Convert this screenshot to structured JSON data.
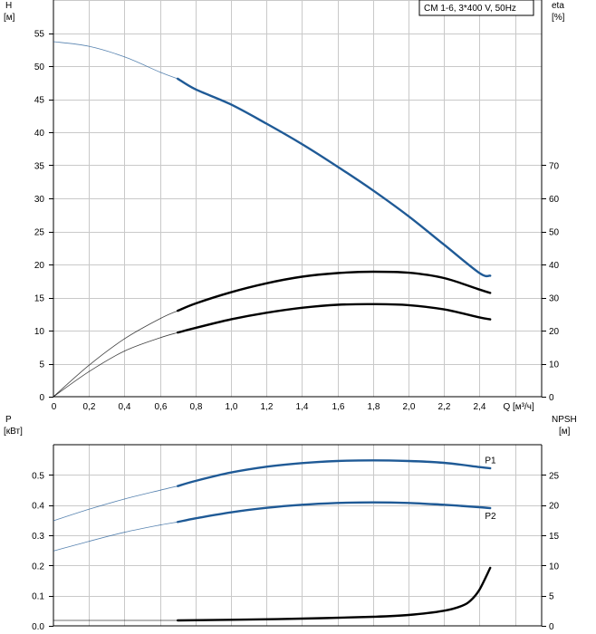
{
  "title": "CM 1-6, 3*400 V, 50Hz",
  "x_axis": {
    "label": "Q [м³/ч]",
    "ticks": [
      "0",
      "0,2",
      "0,4",
      "0,6",
      "0,8",
      "1,0",
      "1,2",
      "1,4",
      "1,6",
      "1,8",
      "2,0",
      "2,2",
      "2,4"
    ]
  },
  "top_panel": {
    "left_axis_title": "H",
    "left_axis_unit": "[м]",
    "right_axis_title": "eta",
    "right_axis_unit": "[%]",
    "left_ticks": [
      "0",
      "5",
      "10",
      "15",
      "20",
      "25",
      "30",
      "35",
      "40",
      "45",
      "50",
      "55"
    ],
    "right_ticks": [
      "0",
      "10",
      "20",
      "30",
      "40",
      "50",
      "60",
      "70"
    ]
  },
  "bottom_panel": {
    "left_axis_title": "P",
    "left_axis_unit": "[кВт]",
    "right_axis_title": "NPSH",
    "right_axis_unit": "[м]",
    "left_ticks": [
      "0.0",
      "0.1",
      "0.2",
      "0.3",
      "0.4",
      "0.5"
    ],
    "right_ticks": [
      "0",
      "5",
      "10",
      "15",
      "20",
      "25"
    ]
  },
  "colors": {
    "blue": "#1f5a96",
    "black": "#000000",
    "thin": "#555555"
  },
  "chart_data": [
    {
      "type": "line",
      "title": "CM 1-6, 3*400 V, 50Hz",
      "xlabel": "Q [м³/ч]",
      "ylabel": "H [м]",
      "y2label": "eta [%]",
      "xlim": [
        0,
        2.75
      ],
      "ylim": [
        0,
        60
      ],
      "y2lim": [
        0,
        120
      ],
      "grid": true,
      "series": [
        {
          "name": "H",
          "axis": "left",
          "color": "#1f5a96",
          "x": [
            0,
            0.2,
            0.4,
            0.6,
            0.7,
            0.8,
            1.0,
            1.2,
            1.4,
            1.6,
            1.8,
            2.0,
            2.2,
            2.4,
            2.46
          ],
          "y": [
            53.7,
            53.0,
            51.4,
            49.1,
            48.1,
            46.5,
            44.2,
            41.3,
            38.2,
            34.8,
            31.2,
            27.3,
            23.0,
            18.7,
            18.3
          ],
          "duty_from": 0.7
        },
        {
          "name": "",
          "axis": "right",
          "color": "#000000",
          "x": [
            0,
            0.2,
            0.4,
            0.6,
            0.7,
            0.8,
            1.0,
            1.2,
            1.4,
            1.6,
            1.8,
            2.0,
            2.2,
            2.4,
            2.46
          ],
          "y": [
            0,
            9.5,
            17.5,
            23.6,
            26.0,
            28.2,
            31.6,
            34.3,
            36.3,
            37.4,
            37.8,
            37.5,
            35.9,
            32.4,
            31.4
          ],
          "duty_from": 0.7
        },
        {
          "name": "",
          "axis": "right",
          "color": "#000000",
          "x": [
            0,
            0.2,
            0.4,
            0.6,
            0.7,
            0.8,
            1.0,
            1.2,
            1.4,
            1.6,
            1.8,
            2.0,
            2.2,
            2.4,
            2.46
          ],
          "y": [
            0,
            7.6,
            13.8,
            17.8,
            19.4,
            20.8,
            23.4,
            25.4,
            26.9,
            27.8,
            28.0,
            27.7,
            26.4,
            24.0,
            23.4
          ],
          "duty_from": 0.7
        }
      ]
    },
    {
      "type": "line",
      "xlabel": "Q [м³/ч]",
      "ylabel": "P [кВт]",
      "y2label": "NPSH [м]",
      "xlim": [
        0,
        2.75
      ],
      "ylim": [
        0,
        0.6
      ],
      "y2lim": [
        0,
        30
      ],
      "grid": true,
      "series": [
        {
          "name": "P1",
          "axis": "left",
          "color": "#1f5a96",
          "x": [
            0,
            0.2,
            0.4,
            0.6,
            0.7,
            0.8,
            1.0,
            1.2,
            1.4,
            1.6,
            1.8,
            2.0,
            2.2,
            2.4,
            2.46
          ],
          "y": [
            0.348,
            0.386,
            0.42,
            0.449,
            0.463,
            0.48,
            0.508,
            0.527,
            0.539,
            0.546,
            0.548,
            0.546,
            0.54,
            0.526,
            0.522
          ],
          "duty_from": 0.7
        },
        {
          "name": "P2",
          "axis": "left",
          "color": "#1f5a96",
          "x": [
            0,
            0.2,
            0.4,
            0.6,
            0.7,
            0.8,
            1.0,
            1.2,
            1.4,
            1.6,
            1.8,
            2.0,
            2.2,
            2.4,
            2.46
          ],
          "y": [
            0.248,
            0.28,
            0.31,
            0.334,
            0.344,
            0.356,
            0.376,
            0.391,
            0.401,
            0.407,
            0.409,
            0.407,
            0.401,
            0.393,
            0.39
          ],
          "duty_from": 0.7
        },
        {
          "name": "",
          "axis": "right",
          "color": "#000000",
          "x": [
            0,
            0.7,
            1.0,
            1.4,
            1.8,
            2.0,
            2.2,
            2.3,
            2.35,
            2.4,
            2.46
          ],
          "y": [
            0.9,
            0.9,
            1.0,
            1.2,
            1.5,
            1.8,
            2.5,
            3.3,
            4.2,
            6.0,
            9.6
          ],
          "duty_from": 0.7
        }
      ]
    }
  ]
}
